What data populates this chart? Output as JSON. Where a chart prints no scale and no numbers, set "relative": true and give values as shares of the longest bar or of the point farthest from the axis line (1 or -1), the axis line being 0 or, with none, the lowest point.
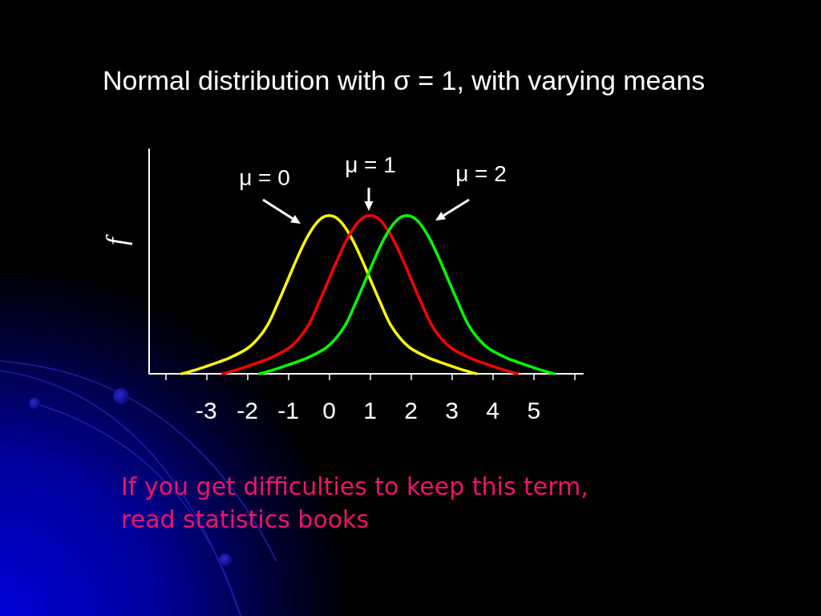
{
  "chart_data": {
    "type": "line",
    "title": "Normal distribution with σ = 1, with varying means",
    "ylabel": "f",
    "relative": true,
    "xlim": [
      -4.4,
      6.2
    ],
    "xticks": [
      {
        "value": -4,
        "label": null
      },
      -3,
      -2,
      -1,
      0,
      1,
      2,
      3,
      4,
      5,
      {
        "value": 6,
        "label": null
      }
    ],
    "marker": "none",
    "line_style": "solid",
    "grid": false,
    "series": [
      {
        "color": "#ffff00",
        "x": [
          -3.6,
          -3.2,
          -2.8,
          -2.4,
          -2,
          -1.75,
          -1.5,
          -1.25,
          -1,
          -0.75,
          -0.5,
          -0.25,
          0,
          0.25,
          0.5,
          0.75,
          1,
          1.25,
          1.5,
          1.75,
          2,
          2.4,
          2.8,
          3.2,
          3.6
        ],
        "values": [
          0,
          0.03,
          0.065,
          0.105,
          0.16,
          0.22,
          0.31,
          0.45,
          0.6,
          0.75,
          0.88,
          0.97,
          1,
          0.97,
          0.88,
          0.75,
          0.6,
          0.45,
          0.31,
          0.22,
          0.16,
          0.105,
          0.065,
          0.03,
          0
        ]
      },
      {
        "color": "#ff0000",
        "x": [
          -2.6,
          -2.2,
          -1.8,
          -1.4,
          -1,
          -0.75,
          -0.5,
          -0.25,
          0,
          0.25,
          0.5,
          0.75,
          1,
          1.25,
          1.5,
          1.75,
          2,
          2.25,
          2.5,
          2.75,
          3,
          3.4,
          3.8,
          4.2,
          4.6
        ],
        "values": [
          0,
          0.03,
          0.065,
          0.105,
          0.16,
          0.22,
          0.31,
          0.45,
          0.6,
          0.75,
          0.88,
          0.97,
          1,
          0.97,
          0.88,
          0.75,
          0.6,
          0.45,
          0.31,
          0.22,
          0.16,
          0.105,
          0.065,
          0.03,
          0
        ]
      },
      {
        "color": "#00ff00",
        "x": [
          -1.7,
          -1.3,
          -0.9,
          -0.5,
          -0.1,
          0.15,
          0.4,
          0.65,
          0.9,
          1.15,
          1.4,
          1.65,
          1.9,
          2.15,
          2.4,
          2.65,
          2.9,
          3.15,
          3.4,
          3.65,
          3.9,
          4.3,
          4.7,
          5.1,
          5.5
        ],
        "values": [
          0,
          0.03,
          0.065,
          0.105,
          0.16,
          0.22,
          0.31,
          0.45,
          0.6,
          0.75,
          0.88,
          0.97,
          1,
          0.97,
          0.88,
          0.75,
          0.6,
          0.45,
          0.31,
          0.22,
          0.16,
          0.105,
          0.065,
          0.03,
          0
        ]
      }
    ],
    "annotations": [
      "μ = 0",
      "μ = 1",
      "μ = 2",
      "If you get difficulties to keep this term, read statistics books"
    ]
  }
}
